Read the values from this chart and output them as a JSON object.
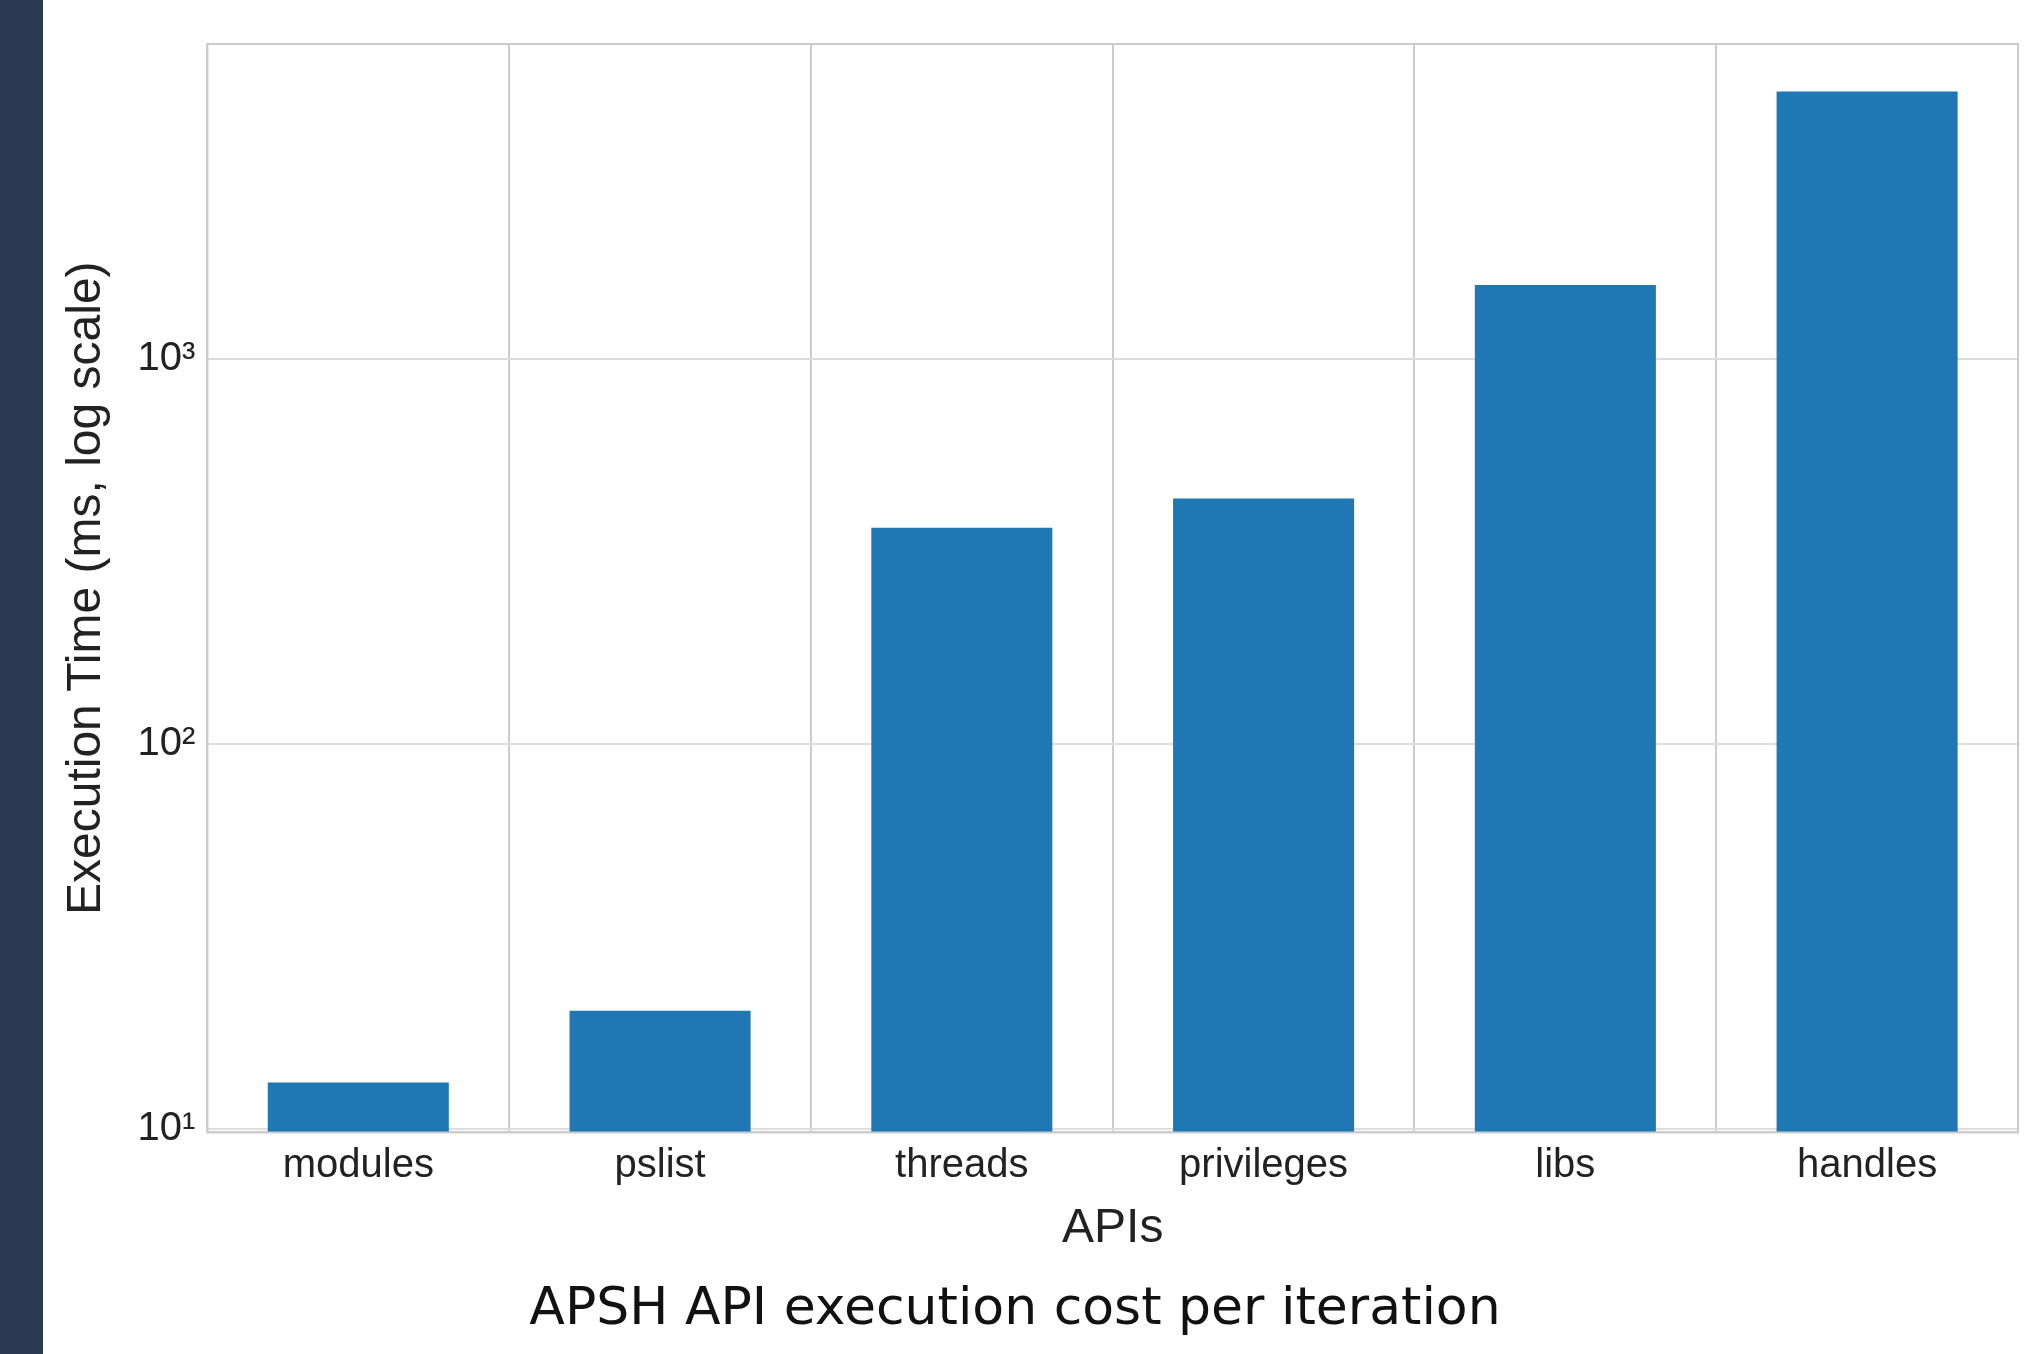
{
  "chart_data": {
    "type": "bar",
    "title": "APSH API execution cost per iteration",
    "xlabel": "APIs",
    "ylabel": "Execution Time (ms, log scale)",
    "categories": [
      "modules",
      "pslist",
      "threads",
      "privileges",
      "libs",
      "handles"
    ],
    "values": [
      13.2,
      20.3,
      365,
      435,
      1560,
      4970
    ],
    "color": "#1f77b4",
    "log": "y",
    "ylim": [
      9.8,
      6600
    ],
    "yticks": [
      {
        "value": 10,
        "label": "10¹"
      },
      {
        "value": 100,
        "label": "10²"
      },
      {
        "value": 1000,
        "label": "10³"
      }
    ],
    "grid": true
  }
}
